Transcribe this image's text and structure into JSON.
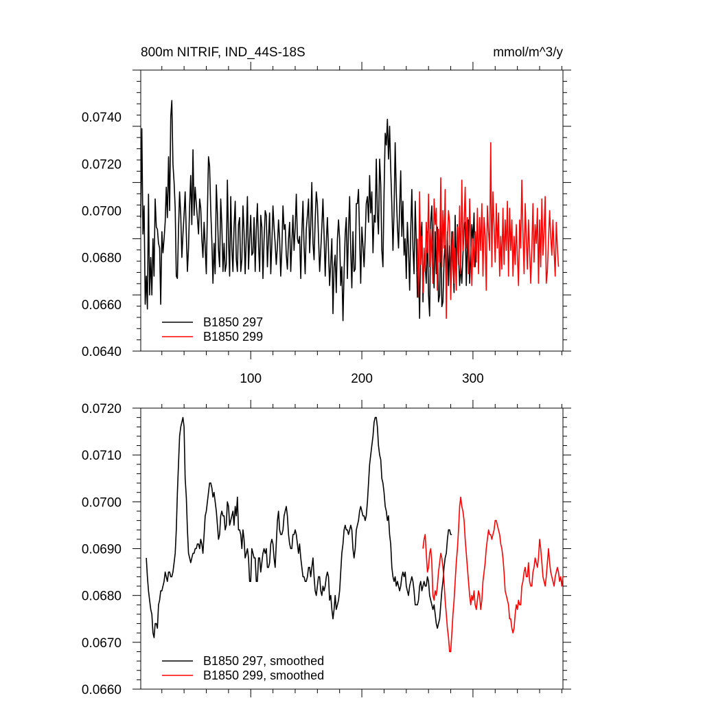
{
  "header": {
    "title": "800m NITRIF, IND_44S-18S",
    "units": "mmol/m^3/y"
  },
  "colors": {
    "run297": "#000000",
    "run299": "#ff0000"
  },
  "chart_data": [
    {
      "type": "line",
      "title": "800m NITRIF, IND_44S-18S",
      "units": "mmol/m^3/y",
      "xlim": [
        1,
        381
      ],
      "ylim": [
        0.064,
        0.076
      ],
      "x_ticks": [
        100,
        200,
        300
      ],
      "x_tick_labels": [
        "100",
        "200",
        "300"
      ],
      "y_ticks": [
        0.064,
        0.066,
        0.068,
        0.07,
        0.072,
        0.074
      ],
      "y_tick_labels": [
        "0.0640",
        "0.0660",
        "0.0680",
        "0.0700",
        "0.0720",
        "0.0740"
      ],
      "legend_position": "bottom-left",
      "series": [
        {
          "name": "B1850 297",
          "color": "#000000",
          "x_start": 1,
          "values": [
            0.0697,
            0.0735,
            0.069,
            0.0702,
            0.066,
            0.0672,
            0.0658,
            0.0707,
            0.0664,
            0.068,
            0.0664,
            0.0688,
            0.0672,
            0.0705,
            0.0693,
            0.0692,
            0.0686,
            0.0684,
            0.066,
            0.0691,
            0.0682,
            0.0688,
            0.0695,
            0.071,
            0.0697,
            0.0723,
            0.07,
            0.074,
            0.0747,
            0.072,
            0.0712,
            0.0701,
            0.0672,
            0.0671,
            0.0692,
            0.0708,
            0.0698,
            0.068,
            0.069,
            0.0698,
            0.0708,
            0.069,
            0.0674,
            0.0684,
            0.0702,
            0.0715,
            0.0694,
            0.0726,
            0.0698,
            0.071,
            0.0703,
            0.0697,
            0.069,
            0.0705,
            0.0701,
            0.0688,
            0.068,
            0.0695,
            0.0684,
            0.0673,
            0.0699,
            0.0723,
            0.0719,
            0.07,
            0.0687,
            0.0669,
            0.0686,
            0.0673,
            0.0711,
            0.0699,
            0.0683,
            0.0676,
            0.0705,
            0.0694,
            0.0674,
            0.0686,
            0.0674,
            0.0677,
            0.0713,
            0.0687,
            0.0672,
            0.0706,
            0.0684,
            0.0674,
            0.0693,
            0.0704,
            0.0679,
            0.0674,
            0.0694,
            0.0697,
            0.0674,
            0.0679,
            0.0702,
            0.0691,
            0.0673,
            0.0689,
            0.0706,
            0.0675,
            0.0688,
            0.0698,
            0.0681,
            0.0682,
            0.0697,
            0.0674,
            0.0692,
            0.0703,
            0.0685,
            0.0674,
            0.0698,
            0.0693,
            0.0671,
            0.0687,
            0.07,
            0.0698,
            0.0676,
            0.0688,
            0.0699,
            0.0673,
            0.0686,
            0.0702,
            0.0693,
            0.0686,
            0.0677,
            0.0685,
            0.0696,
            0.0688,
            0.0672,
            0.0683,
            0.0702,
            0.0692,
            0.0694,
            0.0681,
            0.0675,
            0.0688,
            0.0695,
            0.0674,
            0.0686,
            0.0698,
            0.0683,
            0.0693,
            0.0707,
            0.0688,
            0.0686,
            0.0689,
            0.0671,
            0.0691,
            0.0704,
            0.0685,
            0.0673,
            0.0692,
            0.0698,
            0.0705,
            0.0682,
            0.0694,
            0.0712,
            0.0686,
            0.0679,
            0.0696,
            0.0708,
            0.0703,
            0.0689,
            0.0674,
            0.0683,
            0.0693,
            0.0705,
            0.069,
            0.0672,
            0.0687,
            0.0697,
            0.0683,
            0.0668,
            0.0678,
            0.0688,
            0.0656,
            0.0676,
            0.0681,
            0.0665,
            0.0688,
            0.0696,
            0.0688,
            0.0668,
            0.0676,
            0.0653,
            0.0674,
            0.069,
            0.0697,
            0.0671,
            0.0691,
            0.0706,
            0.0683,
            0.0667,
            0.0691,
            0.0674,
            0.0675,
            0.0703,
            0.0703,
            0.0709,
            0.0689,
            0.0669,
            0.0693,
            0.0685,
            0.0676,
            0.0688,
            0.0703,
            0.0706,
            0.0695,
            0.0715,
            0.0699,
            0.0708,
            0.0682,
            0.0698,
            0.0695,
            0.0722,
            0.0699,
            0.069,
            0.0722,
            0.0711,
            0.0683,
            0.0676,
            0.0707,
            0.0733,
            0.0728,
            0.0739,
            0.0722,
            0.0736,
            0.0718,
            0.0702,
            0.0683,
            0.07,
            0.0729,
            0.0708,
            0.0693,
            0.0684,
            0.0701,
            0.0717,
            0.0689,
            0.0704,
            0.0681,
            0.0688,
            0.0671,
            0.0695,
            0.0684,
            0.0666,
            0.0692,
            0.0709,
            0.0684,
            0.0673,
            0.0704,
            0.0686,
            0.0663,
            0.0676,
            0.0654,
            0.0688,
            0.0695,
            0.0661,
            0.0681,
            0.0677,
            0.0669,
            0.0691,
            0.0664,
            0.0655,
            0.0695,
            0.0702,
            0.0681,
            0.0667,
            0.0691,
            0.0673,
            0.0693,
            0.0661,
            0.0664,
            0.0696,
            0.0659,
            0.0661,
            0.0679,
            0.0685,
            0.0667,
            0.0691,
            0.0668,
            0.0685,
            0.0669,
            0.0691,
            0.0678,
            0.0665,
            0.0698,
            0.0672,
            0.0694,
            0.0682,
            0.0668,
            0.0677,
            0.0669,
            0.0681,
            0.0692,
            0.0695,
            0.0668,
            0.0688,
            0.0696,
            0.0669,
            0.0681,
            0.0694,
            0.0687,
            0.0699,
            0.0676,
            0.0685,
            0.0696
          ]
        },
        {
          "name": "B1850 299",
          "color": "#ff0000",
          "x_start": 250,
          "values": [
            0.0688,
            0.0663,
            0.0708,
            0.0677,
            0.0689,
            0.0665,
            0.0684,
            0.0674,
            0.0695,
            0.0682,
            0.0707,
            0.0676,
            0.0692,
            0.0682,
            0.0669,
            0.0705,
            0.0694,
            0.0701,
            0.0666,
            0.0692,
            0.0678,
            0.0714,
            0.0676,
            0.07,
            0.0684,
            0.0709,
            0.0654,
            0.0688,
            0.07,
            0.0695,
            0.0662,
            0.0681,
            0.0691,
            0.0669,
            0.0684,
            0.0666,
            0.0693,
            0.0677,
            0.0702,
            0.0673,
            0.0713,
            0.0683,
            0.0695,
            0.071,
            0.0684,
            0.0697,
            0.0673,
            0.0705,
            0.0686,
            0.0668,
            0.0688,
            0.0676,
            0.0691,
            0.0678,
            0.0701,
            0.0673,
            0.0697,
            0.0683,
            0.0703,
            0.0672,
            0.0697,
            0.0689,
            0.0666,
            0.0702,
            0.0691,
            0.0683,
            0.0729,
            0.0676,
            0.0708,
            0.0693,
            0.0678,
            0.0703,
            0.0684,
            0.0699,
            0.0672,
            0.0689,
            0.0675,
            0.0701,
            0.0677,
            0.0696,
            0.0683,
            0.0704,
            0.0672,
            0.0701,
            0.0683,
            0.0696,
            0.0672,
            0.0689,
            0.0677,
            0.0694,
            0.0681,
            0.0668,
            0.0696,
            0.0684,
            0.0713,
            0.0691,
            0.0673,
            0.0703,
            0.0688,
            0.0675,
            0.0696,
            0.0683,
            0.0669,
            0.0684,
            0.0703,
            0.0678,
            0.0694,
            0.0686,
            0.0701,
            0.0669,
            0.0696,
            0.0676,
            0.0705,
            0.0681,
            0.0691,
            0.0706,
            0.0669,
            0.0674,
            0.0688,
            0.07,
            0.0689,
            0.0681,
            0.0696,
            0.0683,
            0.0672,
            0.0695,
            0.0684,
            0.0676
          ]
        }
      ]
    },
    {
      "type": "line",
      "xlim": [
        1,
        381
      ],
      "ylim": [
        0.066,
        0.072
      ],
      "x_ticks": [
        100,
        200,
        300
      ],
      "y_ticks": [
        0.066,
        0.067,
        0.068,
        0.069,
        0.07,
        0.071,
        0.072
      ],
      "y_tick_labels": [
        "0.0660",
        "0.0670",
        "0.0680",
        "0.0690",
        "0.0700",
        "0.0710",
        "0.0720"
      ],
      "legend_position": "bottom-left",
      "series": [
        {
          "name": "B1850 297, smoothed",
          "color": "#000000",
          "x_start": 6,
          "values": [
            0.0688,
            0.0684,
            0.0681,
            0.0679,
            0.0677,
            0.0676,
            0.0672,
            0.0671,
            0.0674,
            0.0674,
            0.0673,
            0.0678,
            0.0679,
            0.0681,
            0.0681,
            0.0682,
            0.0683,
            0.0685,
            0.0684,
            0.0683,
            0.0685,
            0.0685,
            0.0684,
            0.0684,
            0.0685,
            0.0687,
            0.0689,
            0.0694,
            0.0702,
            0.0708,
            0.0714,
            0.0716,
            0.0717,
            0.0718,
            0.0716,
            0.0705,
            0.0701,
            0.0694,
            0.0689,
            0.0688,
            0.0687,
            0.0688,
            0.0689,
            0.0689,
            0.069,
            0.069,
            0.0691,
            0.0691,
            0.069,
            0.0692,
            0.0691,
            0.0689,
            0.0693,
            0.0697,
            0.0698,
            0.07,
            0.0702,
            0.0704,
            0.0704,
            0.0703,
            0.0701,
            0.0702,
            0.07,
            0.0698,
            0.0695,
            0.0692,
            0.0693,
            0.0697,
            0.0698,
            0.0697,
            0.0697,
            0.0694,
            0.0695,
            0.07,
            0.0699,
            0.0695,
            0.0696,
            0.0697,
            0.0698,
            0.0695,
            0.0699,
            0.0697,
            0.0701,
            0.0694,
            0.0694,
            0.0693,
            0.069,
            0.0694,
            0.0692,
            0.0688,
            0.0689,
            0.069,
            0.0688,
            0.0683,
            0.0683,
            0.069,
            0.0689,
            0.0688,
            0.0688,
            0.0683,
            0.0683,
            0.0688,
            0.0688,
            0.0685,
            0.0687,
            0.0689,
            0.069,
            0.0689,
            0.069,
            0.0686,
            0.0686,
            0.0687,
            0.0691,
            0.0692,
            0.0691,
            0.0688,
            0.0686,
            0.0691,
            0.0696,
            0.0698,
            0.0694,
            0.0693,
            0.0693,
            0.0694,
            0.0697,
            0.0698,
            0.0699,
            0.0697,
            0.0693,
            0.0691,
            0.069,
            0.069,
            0.0693,
            0.0693,
            0.0694,
            0.0693,
            0.0691,
            0.0689,
            0.0691,
            0.0688,
            0.0686,
            0.0684,
            0.0684,
            0.0683,
            0.0683,
            0.0684,
            0.0686,
            0.0686,
            0.0684,
            0.0686,
            0.0688,
            0.0684,
            0.0681,
            0.068,
            0.0682,
            0.0684,
            0.0684,
            0.0681,
            0.068,
            0.0682,
            0.0681,
            0.0682,
            0.0684,
            0.0685,
            0.0684,
            0.0679,
            0.068,
            0.0677,
            0.0675,
            0.0677,
            0.068,
            0.0677,
            0.0678,
            0.0679,
            0.0681,
            0.0685,
            0.0689,
            0.0691,
            0.0694,
            0.0695,
            0.0694,
            0.0694,
            0.0693,
            0.0694,
            0.0695,
            0.0694,
            0.069,
            0.0688,
            0.069,
            0.0694,
            0.0695,
            0.0696,
            0.0698,
            0.0699,
            0.0698,
            0.0697,
            0.0697,
            0.0696,
            0.0697,
            0.07,
            0.0704,
            0.0708,
            0.071,
            0.0712,
            0.0714,
            0.0717,
            0.0718,
            0.0718,
            0.0716,
            0.0712,
            0.071,
            0.0709,
            0.0705,
            0.0704,
            0.0702,
            0.0699,
            0.0698,
            0.0696,
            0.0697,
            0.0693,
            0.0691,
            0.0686,
            0.0684,
            0.0683,
            0.0684,
            0.0682,
            0.0683,
            0.0682,
            0.0681,
            0.0682,
            0.0684,
            0.0685,
            0.0684,
            0.0685,
            0.0682,
            0.0681,
            0.068,
            0.0682,
            0.0683,
            0.0684,
            0.0683,
            0.0681,
            0.0678,
            0.0678,
            0.0678,
            0.0679,
            0.0682,
            0.0683,
            0.0681,
            0.0682,
            0.0683,
            0.0682,
            0.0682,
            0.0684,
            0.0683,
            0.068,
            0.0679,
            0.0678,
            0.0677,
            0.0678,
            0.0676,
            0.0674,
            0.0673,
            0.0674,
            0.0675,
            0.0678,
            0.0681,
            0.0683,
            0.0686,
            0.0688,
            0.0689,
            0.0692,
            0.0694,
            0.0694,
            0.0693,
            0.0693
          ]
        },
        {
          "name": "B1850 299, smoothed",
          "color": "#ff0000",
          "x_start": 255,
          "values": [
            0.069,
            0.0692,
            0.0693,
            0.0689,
            0.0685,
            0.0686,
            0.0689,
            0.069,
            0.0687,
            0.068,
            0.0679,
            0.0681,
            0.068,
            0.0682,
            0.0685,
            0.0687,
            0.0689,
            0.0688,
            0.0686,
            0.0683,
            0.0679,
            0.0676,
            0.0673,
            0.0671,
            0.0668,
            0.0668,
            0.0672,
            0.0676,
            0.0679,
            0.0683,
            0.0687,
            0.069,
            0.0694,
            0.0699,
            0.0701,
            0.0699,
            0.0698,
            0.0696,
            0.0692,
            0.0689,
            0.0686,
            0.0683,
            0.068,
            0.0678,
            0.068,
            0.0679,
            0.0681,
            0.0678,
            0.0677,
            0.0679,
            0.0681,
            0.068,
            0.0677,
            0.0679,
            0.0683,
            0.0685,
            0.0687,
            0.069,
            0.0692,
            0.0694,
            0.0693,
            0.0693,
            0.0692,
            0.0693,
            0.0694,
            0.0696,
            0.0696,
            0.0695,
            0.0694,
            0.0693,
            0.0691,
            0.069,
            0.0688,
            0.0685,
            0.0681,
            0.068,
            0.0679,
            0.0678,
            0.0675,
            0.0675,
            0.0673,
            0.0672,
            0.0673,
            0.0676,
            0.0678,
            0.0677,
            0.0679,
            0.0678,
            0.0678,
            0.0682,
            0.0683,
            0.0685,
            0.0686,
            0.0684,
            0.0684,
            0.0687,
            0.0683,
            0.0682,
            0.0682,
            0.0685,
            0.0686,
            0.0688,
            0.0687,
            0.0686,
            0.0688,
            0.0692,
            0.069,
            0.0687,
            0.0684,
            0.0683,
            0.0682,
            0.0684,
            0.0687,
            0.069,
            0.0687,
            0.0685,
            0.0684,
            0.0683,
            0.0682,
            0.0684,
            0.0685,
            0.0686,
            0.0685,
            0.0683,
            0.0684,
            0.0682,
            0.0684,
            0.0684
          ]
        }
      ]
    }
  ]
}
